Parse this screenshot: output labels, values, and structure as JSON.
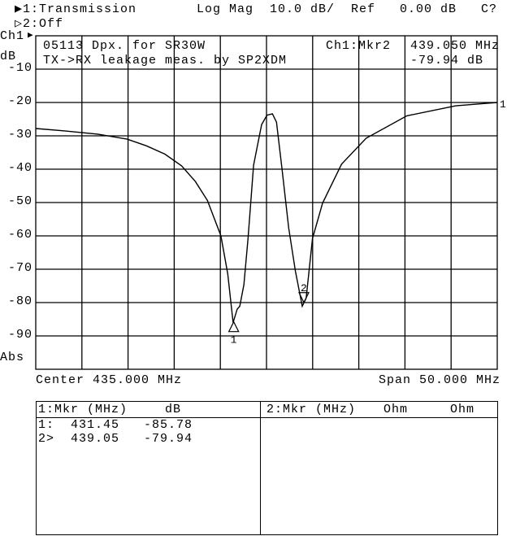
{
  "header": {
    "trace1": "▶1:Transmission",
    "format": "Log Mag  10.0 dB/  Ref   0.00 dB   C?",
    "trace2": "▷2:Off",
    "channel": "Ch1",
    "channel_pointer": "▶",
    "unit": "dB",
    "abs": "Abs"
  },
  "annotation": {
    "line1": "05113 Dpx. for SR30W",
    "line2": "TX->RX leakage meas. by SP2XDM",
    "marker_label": "Ch1:Mkr2",
    "marker_freq": "439.050 MHz",
    "marker_value": "-79.94 dB"
  },
  "footer": {
    "center": "Center 435.000 MHz",
    "span": "Span 50.000 MHz"
  },
  "marker_table": {
    "left_header": [
      "1:Mkr (MHz)",
      "dB"
    ],
    "rows": [
      [
        "1:",
        "431.45",
        "-85.78"
      ],
      [
        "2>",
        "439.05",
        "-79.94"
      ]
    ],
    "right_header": [
      "2:Mkr (MHz)",
      "Ohm",
      "Ohm"
    ]
  },
  "chart_data": {
    "type": "line",
    "title": "",
    "xlim": [
      410,
      460
    ],
    "ylim": [
      -100,
      0
    ],
    "x_unit": "MHz",
    "ylabel": "dB",
    "grid": true,
    "yticks": [
      -10,
      -20,
      -30,
      -40,
      -50,
      -60,
      -70,
      -80,
      -90
    ],
    "ytick_labels": [
      "-10",
      "-20",
      "-30",
      "-40",
      "-50",
      "-60",
      "-70",
      "-80",
      "-90"
    ],
    "x_divisions": 10,
    "trace_color": "#000000",
    "reference_marker": "1",
    "series": [
      {
        "x": [
          410,
          413,
          416.7,
          419.9,
          422,
          424,
          425.8,
          427.3,
          428.6,
          430.06,
          430.8,
          431.38,
          431.82,
          432.1,
          432.55,
          433.0,
          433.6,
          434.47,
          435.05,
          435.64,
          436.08,
          436.67,
          437.4,
          438.13,
          438.87,
          439.3,
          439.98,
          441.07,
          443.13,
          445.8,
          450.2,
          455.5,
          460
        ],
        "y": [
          -27.8,
          -28.5,
          -29.5,
          -31,
          -33,
          -35.5,
          -39,
          -43.7,
          -49.4,
          -60.0,
          -71.4,
          -86.0,
          -82.0,
          -81.1,
          -74.6,
          -60.7,
          -38.8,
          -26.6,
          -23.8,
          -23.4,
          -25.9,
          -39.7,
          -57.6,
          -70.6,
          -81.1,
          -78.7,
          -60.8,
          -50.2,
          -38.5,
          -30.7,
          -24,
          -21,
          -20
        ]
      }
    ],
    "markers": [
      {
        "label": "1",
        "freq_mhz": 431.45,
        "value_db": -85.78,
        "active": false
      },
      {
        "label": "2",
        "freq_mhz": 439.05,
        "value_db": -79.94,
        "active": true
      }
    ]
  }
}
